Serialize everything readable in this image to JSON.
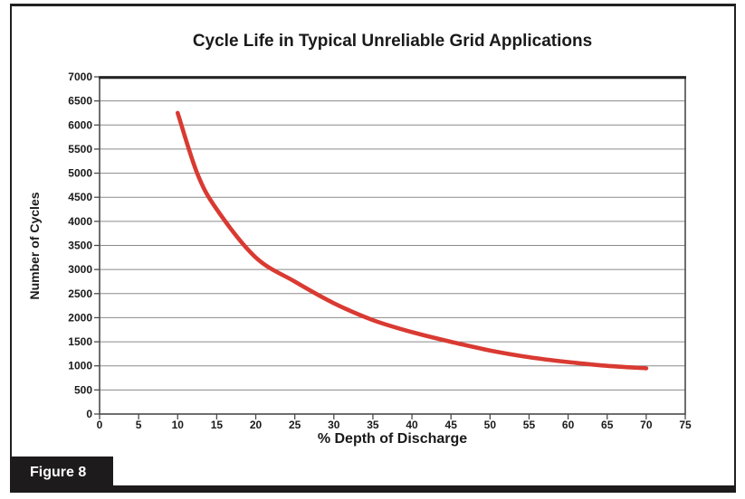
{
  "figure": {
    "label": "Figure 8"
  },
  "colors": {
    "curve": "#d93a32",
    "frame_and_bars": "#1d1b1c",
    "gridline": "#8a8a8a",
    "axis_line": "#4a4a4a",
    "text": "#1a1a1a"
  },
  "chart_data": {
    "type": "line",
    "title": "Cycle Life in Typical Unreliable Grid Applications",
    "xlabel": "% Depth of Discharge",
    "ylabel": "Number of Cycles",
    "x": [
      10,
      12.5,
      15,
      20,
      25,
      30,
      35,
      40,
      45,
      50,
      55,
      60,
      65,
      70
    ],
    "y": [
      6250,
      5000,
      4250,
      3250,
      2750,
      2300,
      1950,
      1700,
      1500,
      1320,
      1180,
      1080,
      1000,
      950
    ],
    "xlim": [
      0,
      75
    ],
    "ylim": [
      0,
      7000
    ],
    "x_ticks": [
      0,
      5,
      10,
      15,
      20,
      25,
      30,
      35,
      40,
      45,
      50,
      55,
      60,
      65,
      70,
      75
    ],
    "y_ticks": [
      0,
      500,
      1000,
      1500,
      2000,
      2500,
      3000,
      3500,
      4000,
      4500,
      5000,
      5500,
      6000,
      6500,
      7000
    ],
    "grid": true,
    "legend": "none",
    "line_color": "#d93a32"
  }
}
